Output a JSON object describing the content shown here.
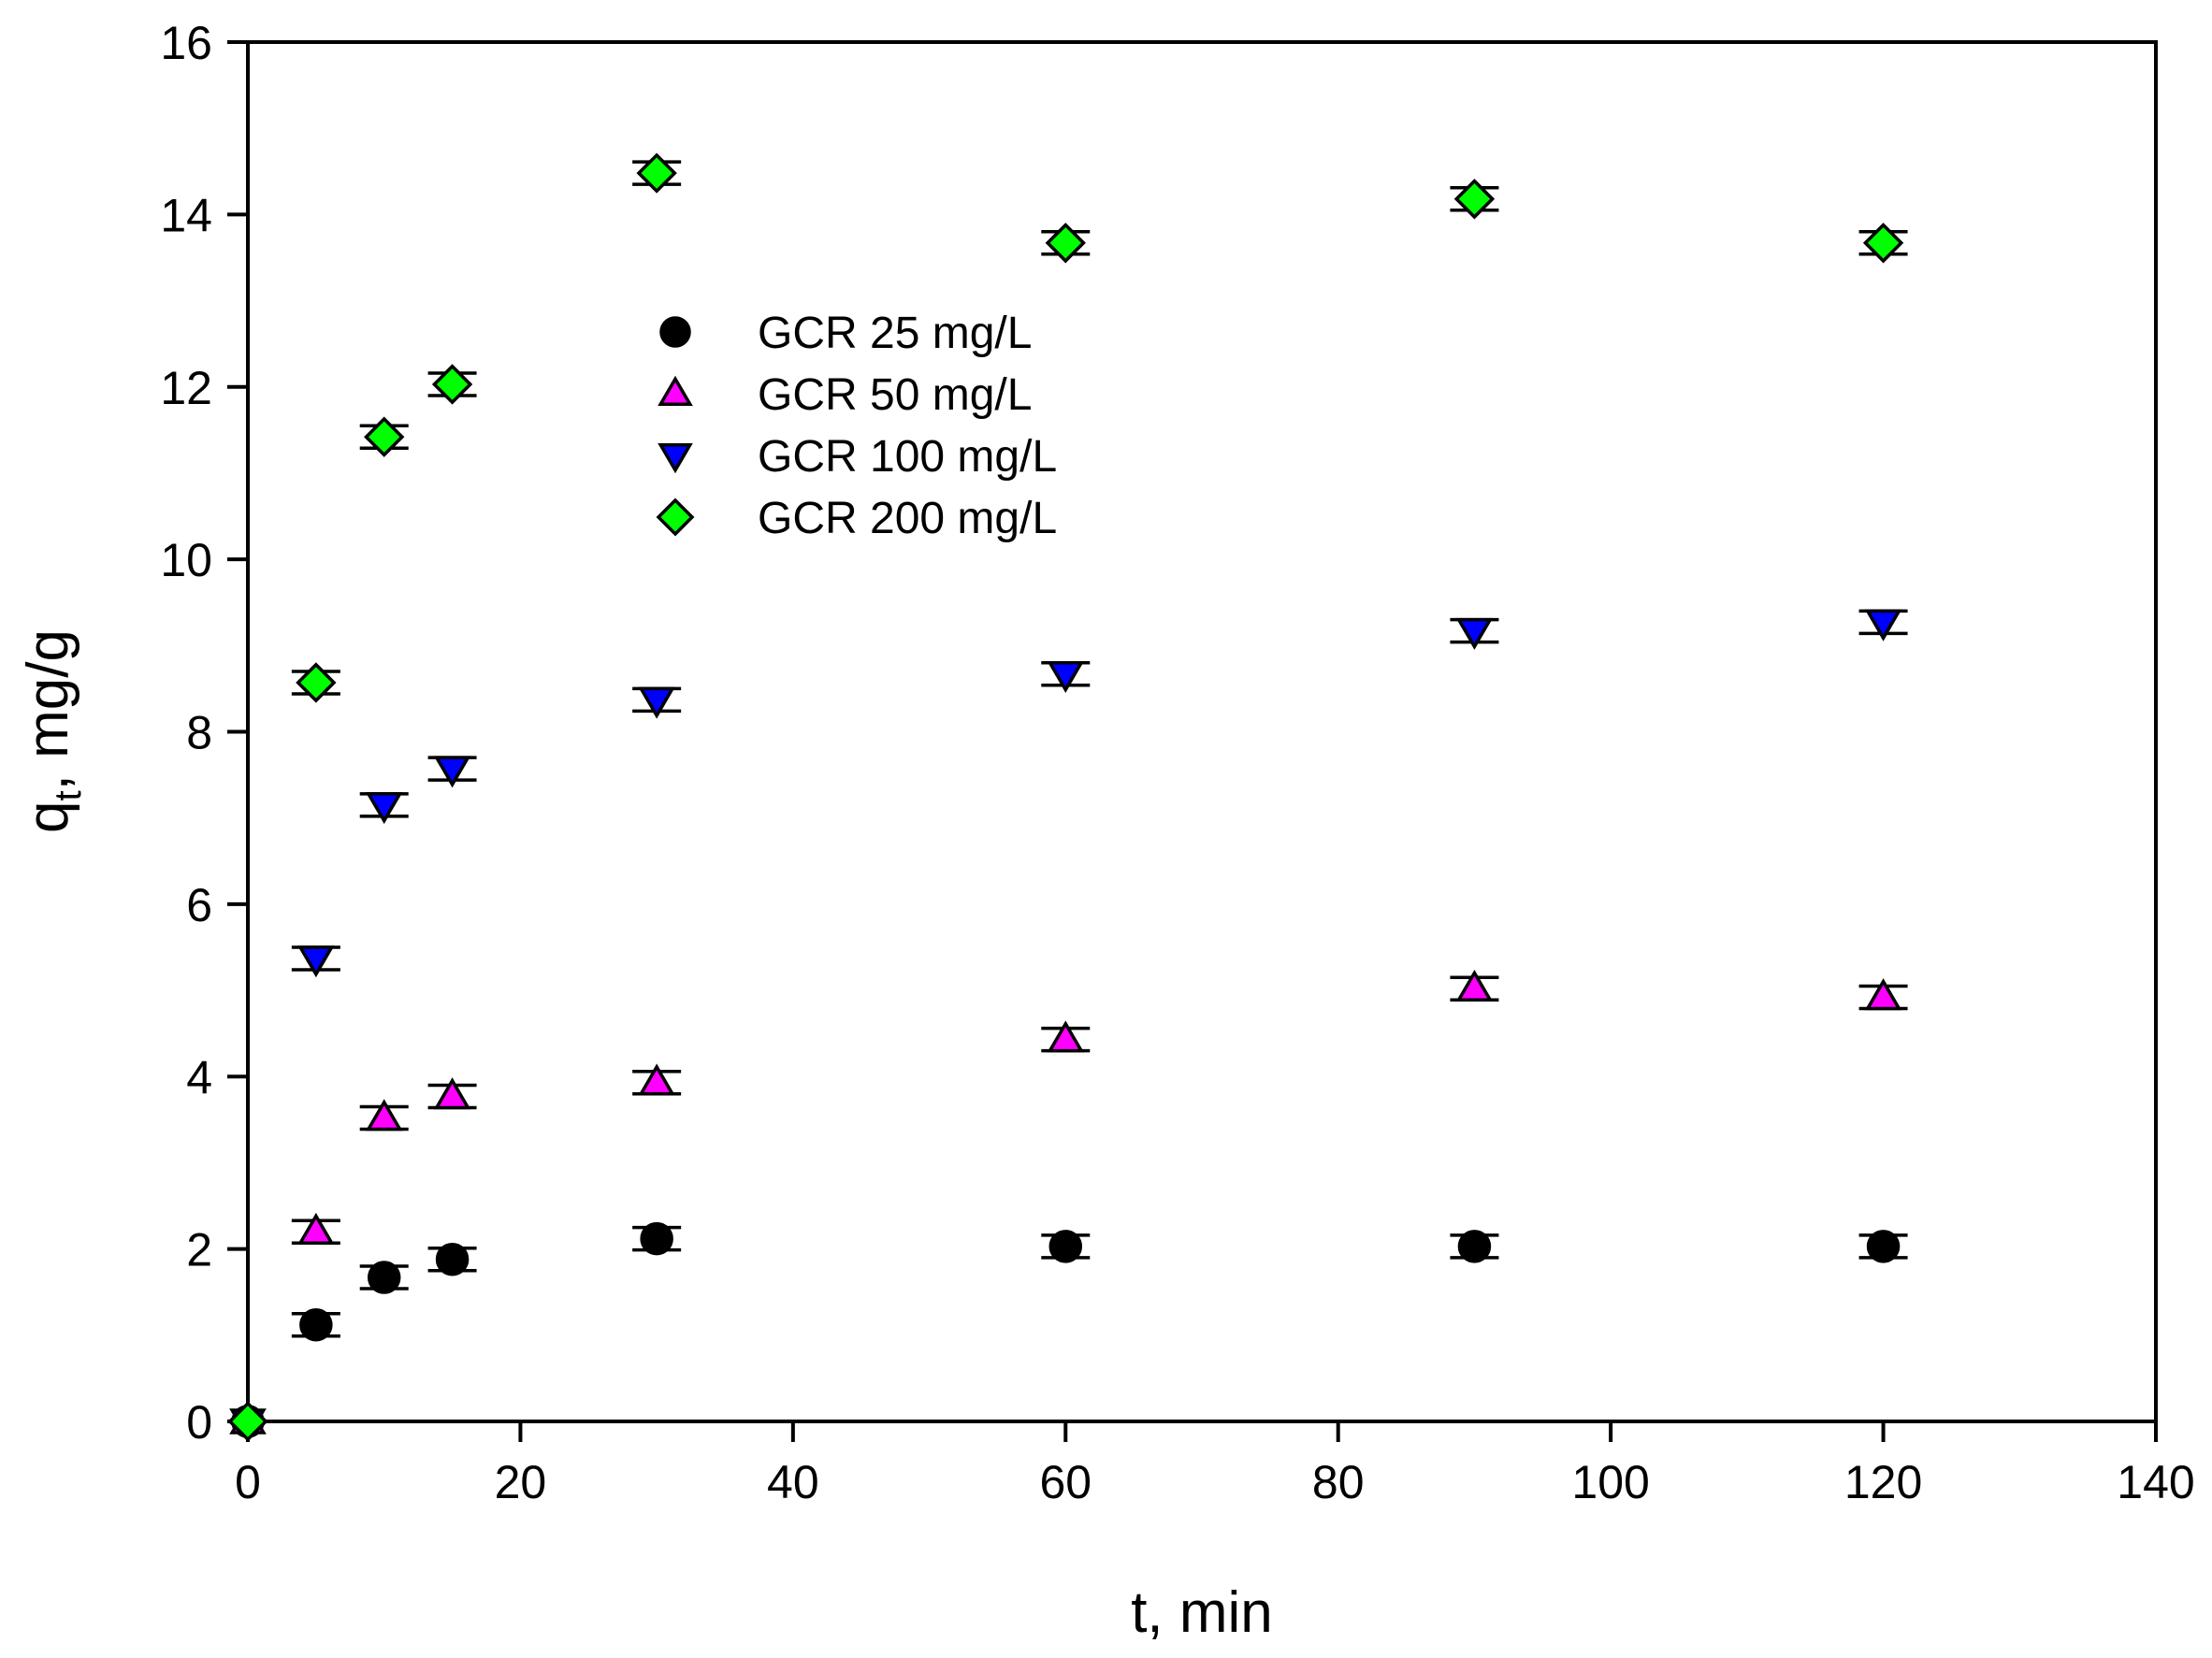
{
  "chart_data": {
    "type": "scatter",
    "title": "",
    "xlabel": "t, min",
    "ylabel": {
      "base": "q",
      "sub": "t",
      "rest": ", mg/g"
    },
    "xlim": [
      0,
      140
    ],
    "ylim": [
      0,
      16
    ],
    "xticks": [
      0,
      20,
      40,
      60,
      80,
      100,
      120,
      140
    ],
    "yticks": [
      0,
      2,
      4,
      6,
      8,
      10,
      12,
      14,
      16
    ],
    "grid": false,
    "legend_position": "upper-left-center",
    "x": [
      0,
      5,
      10,
      15,
      30,
      60,
      90,
      120
    ],
    "series": [
      {
        "name": "GCR 25 mg/L",
        "marker": "circle",
        "color": "#000000",
        "values": [
          0,
          1.12,
          1.67,
          1.88,
          2.12,
          2.03,
          2.03,
          2.03
        ]
      },
      {
        "name": "GCR 50 mg/L",
        "marker": "triangle-up",
        "color": "#ff00ff",
        "values": [
          0,
          2.2,
          3.52,
          3.77,
          3.93,
          4.43,
          5.02,
          4.92
        ]
      },
      {
        "name": "GCR 100 mg/L",
        "marker": "triangle-down",
        "color": "#0000ff",
        "values": [
          0,
          5.37,
          7.15,
          7.57,
          8.37,
          8.67,
          9.17,
          9.27
        ]
      },
      {
        "name": "GCR 200 mg/L",
        "marker": "diamond",
        "color": "#00ff00",
        "values": [
          0,
          8.57,
          11.42,
          12.03,
          14.48,
          13.67,
          14.18,
          13.67
        ]
      }
    ]
  }
}
